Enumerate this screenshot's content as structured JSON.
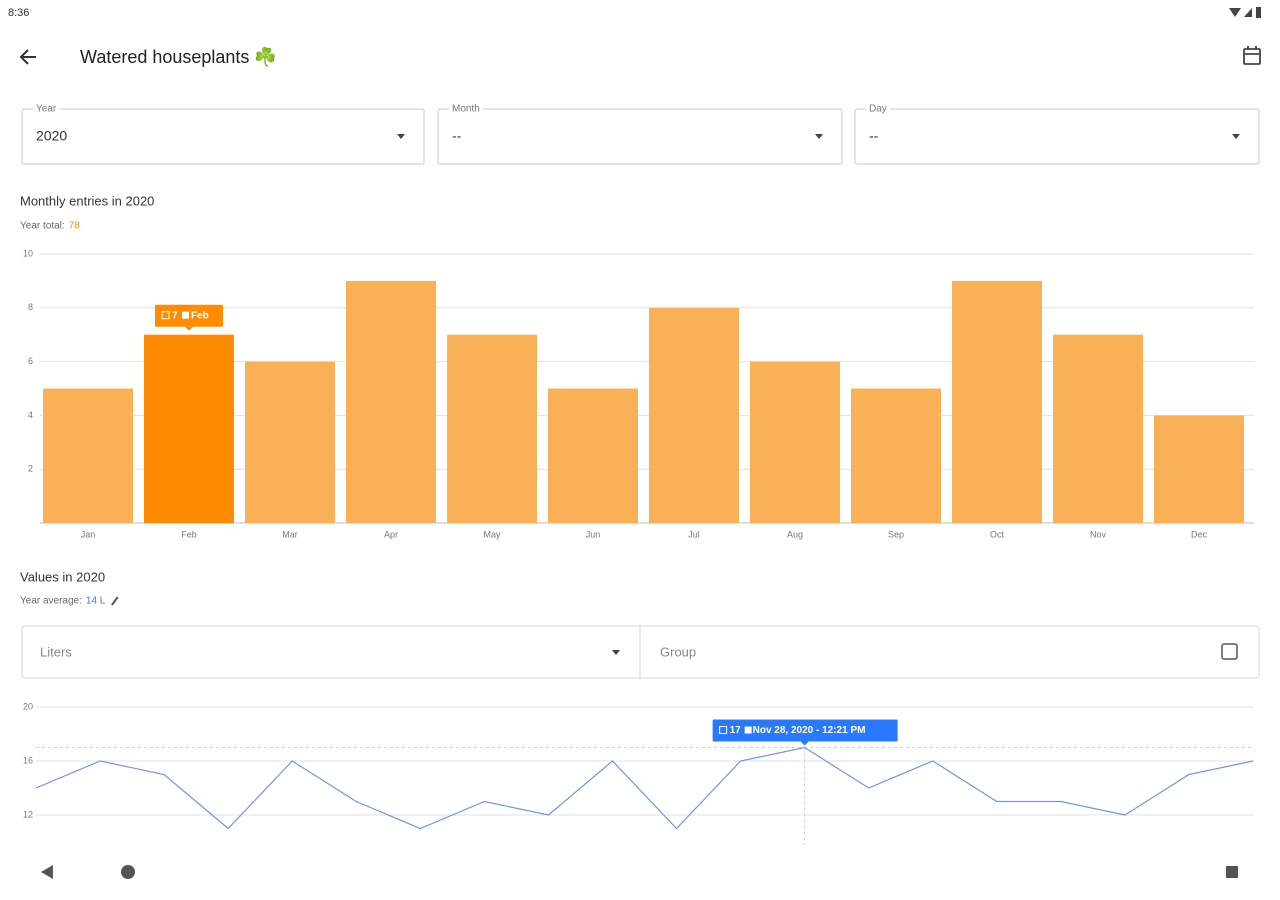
{
  "status_bar": {
    "time": "8:36"
  },
  "app_bar": {
    "title": "Watered houseplants ☘️"
  },
  "filters": [
    {
      "label": "Year",
      "value": "2020"
    },
    {
      "label": "Month",
      "value": "--"
    },
    {
      "label": "Day",
      "value": "--"
    }
  ],
  "chart_data": [
    {
      "type": "bar",
      "title": "Monthly entries in 2020",
      "summary_label": "Year total:",
      "summary_value": 78,
      "categories": [
        "Jan",
        "Feb",
        "Mar",
        "Apr",
        "May",
        "Jun",
        "Jul",
        "Aug",
        "Sep",
        "Oct",
        "Nov",
        "Dec"
      ],
      "values": [
        5,
        7,
        6,
        9,
        7,
        5,
        8,
        6,
        5,
        9,
        7,
        4
      ],
      "color": "#f9b057",
      "highlight_color": "#ff8c00",
      "highlight_index": 1,
      "ylim": [
        0,
        10
      ],
      "yticks": [
        2,
        4,
        6,
        8,
        10
      ],
      "grid": true
    },
    {
      "type": "line",
      "title": "Values in 2020",
      "summary_label": "Year average:",
      "summary_value": "14 L",
      "unit": "Liters",
      "group_label": "Group",
      "values": [
        14,
        16,
        15,
        11,
        16,
        13,
        11,
        13,
        12,
        16,
        11,
        16,
        17,
        14,
        16,
        13,
        13,
        12,
        15,
        16
      ],
      "color": "#6f93f2",
      "tooltip_color": "#2979ff",
      "tooltip": {
        "index": 12,
        "date": "Nov 28, 2020 - 12:21 PM"
      },
      "ylim": [
        10,
        20
      ],
      "yticks": [
        12,
        16,
        20
      ],
      "grid": true
    }
  ]
}
